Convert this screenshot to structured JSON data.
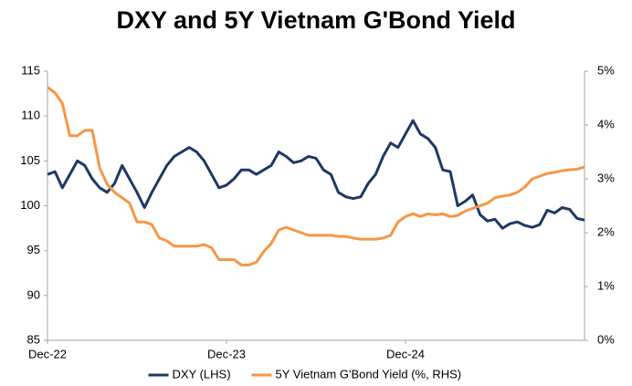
{
  "chart_data": {
    "type": "line",
    "title": "DXY and 5Y Vietnam G'Bond Yield",
    "categories": [
      "Dec-22",
      null,
      null,
      null,
      null,
      null,
      null,
      null,
      null,
      null,
      null,
      null,
      null,
      null,
      null,
      null,
      null,
      null,
      null,
      null,
      null,
      null,
      null,
      null,
      "Dec-23",
      null,
      null,
      null,
      null,
      null,
      null,
      null,
      null,
      null,
      null,
      null,
      null,
      null,
      null,
      null,
      null,
      null,
      null,
      null,
      null,
      null,
      null,
      null,
      "Dec-24",
      null,
      null,
      null,
      null,
      null,
      null,
      null,
      null,
      null,
      null,
      null,
      null,
      null,
      null,
      null,
      null,
      null,
      null,
      null,
      null,
      null,
      null,
      null,
      null
    ],
    "series": [
      {
        "name": "DXY (LHS)",
        "color": "#1f3864",
        "values": [
          103.5,
          103.8,
          102,
          103.5,
          105,
          104.5,
          103,
          102,
          101.5,
          102.5,
          104.5,
          103,
          101.5,
          99.8,
          101.5,
          103,
          104.5,
          105.5,
          106,
          106.5,
          106,
          105,
          103.5,
          102,
          102.3,
          103,
          104,
          104,
          103.5,
          104,
          104.5,
          106,
          105.5,
          104.8,
          105,
          105.5,
          105.3,
          104,
          103.5,
          101.5,
          101,
          100.8,
          101,
          102.5,
          103.5,
          105.5,
          107,
          106.5,
          108,
          109.5,
          108,
          107.5,
          106.5,
          104,
          103.8,
          100,
          100.5,
          101.2,
          99,
          98.3,
          98.5,
          97.5,
          98,
          98.2,
          97.8,
          97.6,
          97.9,
          99.5,
          99.2,
          99.8,
          99.6,
          98.6,
          98.4
        ]
      },
      {
        "name": "5Y Vietnam G'Bond Yield (%, RHS)",
        "color": "#f79646",
        "axis": "y2",
        "values": [
          4.7,
          4.6,
          4.4,
          3.8,
          3.8,
          3.9,
          3.9,
          3.2,
          2.9,
          2.75,
          2.65,
          2.55,
          2.2,
          2.2,
          2.15,
          1.9,
          1.85,
          1.75,
          1.75,
          1.75,
          1.75,
          1.78,
          1.72,
          1.5,
          1.5,
          1.5,
          1.4,
          1.4,
          1.45,
          1.65,
          1.8,
          2.05,
          2.1,
          2.05,
          2.0,
          1.95,
          1.95,
          1.95,
          1.95,
          1.93,
          1.93,
          1.9,
          1.88,
          1.88,
          1.88,
          1.9,
          1.95,
          2.2,
          2.3,
          2.35,
          2.3,
          2.35,
          2.33,
          2.35,
          2.3,
          2.32,
          2.4,
          2.45,
          2.5,
          2.55,
          2.65,
          2.68,
          2.7,
          2.75,
          2.85,
          3.0,
          3.05,
          3.1,
          3.12,
          3.15,
          3.17,
          3.18,
          3.22
        ]
      }
    ],
    "ylim": [
      85,
      115
    ],
    "yticks": [
      85,
      90,
      95,
      100,
      105,
      110,
      115
    ],
    "y2lim": [
      0,
      5
    ],
    "y2ticks": [
      {
        "value": 0,
        "label": "0%"
      },
      {
        "value": 1,
        "label": "1%"
      },
      {
        "value": 2,
        "label": "2%"
      },
      {
        "value": 3,
        "label": "3%"
      },
      {
        "value": 4,
        "label": "4%"
      },
      {
        "value": 5,
        "label": "5%"
      }
    ],
    "grid": false,
    "legend": "bottom"
  }
}
